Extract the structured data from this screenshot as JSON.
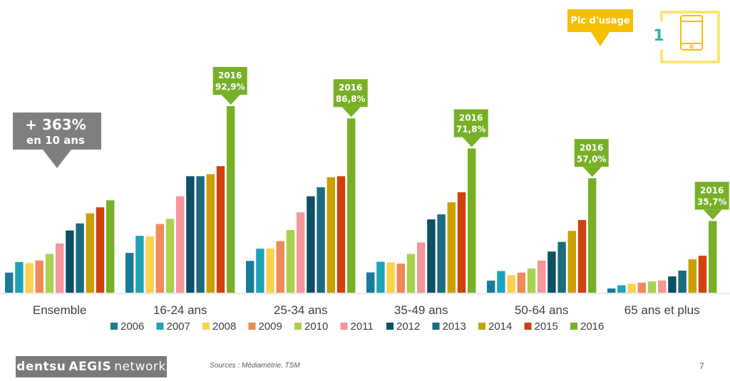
{
  "chart_data": {
    "type": "bar",
    "categories": [
      "Ensemble",
      "16-24 ans",
      "25-34 ans",
      "35-49 ans",
      "50-64 ans",
      "65 ans et plus"
    ],
    "series": [
      {
        "name": "2006",
        "color": "#1a7a9a",
        "values": [
          10.0,
          19.8,
          15.8,
          10.1,
          6.0,
          2.1
        ]
      },
      {
        "name": "2007",
        "color": "#1fa3b8",
        "values": [
          15.3,
          28.3,
          21.9,
          15.4,
          10.8,
          3.7
        ]
      },
      {
        "name": "2008",
        "color": "#fbd24f",
        "values": [
          14.7,
          28.0,
          22.0,
          15.1,
          8.7,
          4.5
        ]
      },
      {
        "name": "2009",
        "color": "#f08a5a",
        "values": [
          16.0,
          34.2,
          25.7,
          14.5,
          10.0,
          5.0
        ]
      },
      {
        "name": "2010",
        "color": "#a8d14f",
        "values": [
          19.3,
          36.8,
          31.2,
          19.3,
          12.0,
          5.6
        ]
      },
      {
        "name": "2011",
        "color": "#f4969a",
        "values": [
          24.5,
          48.0,
          40.0,
          25.0,
          16.0,
          6.1
        ]
      },
      {
        "name": "2012",
        "color": "#0e4f66",
        "values": [
          31.0,
          58.0,
          48.0,
          36.5,
          20.5,
          8.1
        ]
      },
      {
        "name": "2013",
        "color": "#1c6c80",
        "values": [
          34.5,
          58.0,
          52.5,
          39.0,
          25.3,
          11.0
        ]
      },
      {
        "name": "2014",
        "color": "#c9a000",
        "values": [
          39.5,
          59.0,
          57.5,
          45.0,
          30.8,
          16.6
        ]
      },
      {
        "name": "2015",
        "color": "#d0410e",
        "values": [
          42.5,
          63.0,
          58.0,
          50.0,
          36.2,
          18.4
        ]
      },
      {
        "name": "2016",
        "color": "#77b026",
        "values": [
          46.0,
          92.9,
          86.8,
          71.8,
          57.0,
          35.7
        ]
      }
    ],
    "callouts": [
      {
        "category": "16-24 ans",
        "year": "2016",
        "value": "92,9%"
      },
      {
        "category": "25-34 ans",
        "year": "2016",
        "value": "86,8%"
      },
      {
        "category": "35-49 ans",
        "year": "2016",
        "value": "71,8%"
      },
      {
        "category": "50-64 ans",
        "year": "2016",
        "value": "57,0%"
      },
      {
        "category": "65 ans et plus",
        "year": "2016",
        "value": "35,7%"
      }
    ],
    "growth_callout": {
      "line1": "+ 363%",
      "line2": "en 10 ans",
      "color": "#7f7f7f"
    },
    "grid": false,
    "legend_position": "bottom",
    "ylim": [
      0,
      100
    ],
    "colors": {
      "callout": "#77b026",
      "usage": "#f5c000"
    }
  },
  "usage_peak": {
    "label": "Pic d'usage",
    "number": "1",
    "icon": "tablet-icon"
  },
  "footer": {
    "brand_a": "dentsu",
    "brand_b": "AEGIS",
    "brand_c": "network",
    "source": "Sources : Médiamétrie, TSM",
    "page": "7"
  }
}
